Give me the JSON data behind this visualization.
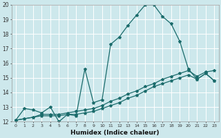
{
  "xlabel": "Humidex (Indice chaleur)",
  "xlim": [
    -0.5,
    23.5
  ],
  "ylim": [
    12,
    20
  ],
  "xticks": [
    0,
    1,
    2,
    3,
    4,
    5,
    6,
    7,
    8,
    9,
    10,
    11,
    12,
    13,
    14,
    15,
    16,
    17,
    18,
    19,
    20,
    21,
    22,
    23
  ],
  "yticks": [
    12,
    13,
    14,
    15,
    16,
    17,
    18,
    19,
    20
  ],
  "bg_color": "#cde8ec",
  "line_color": "#1a6b6b",
  "grid_color": "#ffffff",
  "line1_x": [
    0,
    1,
    2,
    3,
    4,
    5,
    6,
    7,
    8,
    9,
    10,
    11,
    12,
    13,
    14,
    15,
    16,
    17,
    18,
    19,
    20,
    21,
    22,
    23
  ],
  "line1_y": [
    12.1,
    12.9,
    12.8,
    12.6,
    13.0,
    12.0,
    12.5,
    12.4,
    15.6,
    13.3,
    13.5,
    17.3,
    17.8,
    18.6,
    19.3,
    20.0,
    20.0,
    19.2,
    18.7,
    17.5,
    15.6,
    14.9,
    15.3,
    14.8
  ],
  "line2_x": [
    0,
    1,
    2,
    3,
    4,
    5,
    6,
    7,
    8,
    9,
    10,
    11,
    12,
    13,
    14,
    15,
    16,
    17,
    18,
    19,
    20,
    21,
    22,
    23
  ],
  "line2_y": [
    12.1,
    12.2,
    12.3,
    12.4,
    12.4,
    12.4,
    12.5,
    12.5,
    12.6,
    12.7,
    12.9,
    13.1,
    13.3,
    13.6,
    13.8,
    14.1,
    14.4,
    14.6,
    14.8,
    15.0,
    15.2,
    14.9,
    15.3,
    14.8
  ],
  "line3_x": [
    0,
    1,
    2,
    3,
    4,
    5,
    6,
    7,
    8,
    9,
    10,
    11,
    12,
    13,
    14,
    15,
    16,
    17,
    18,
    19,
    20,
    21,
    22,
    23
  ],
  "line3_y": [
    12.1,
    12.2,
    12.3,
    12.5,
    12.5,
    12.5,
    12.6,
    12.7,
    12.8,
    12.9,
    13.1,
    13.4,
    13.6,
    13.9,
    14.1,
    14.4,
    14.6,
    14.9,
    15.1,
    15.3,
    15.5,
    15.1,
    15.4,
    15.5
  ]
}
